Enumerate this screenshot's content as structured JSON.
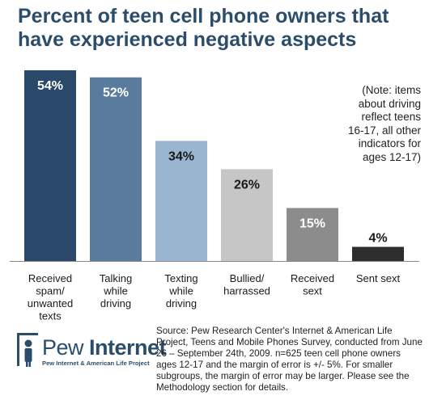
{
  "chart_data": {
    "type": "bar",
    "title": "Percent of teen cell phone owners that have experienced negative aspects",
    "categories": [
      "Received spam/ unwanted texts",
      "Talking while driving",
      "Texting while driving",
      "Bullied/ harrassed",
      "Received sext",
      "Sent sext"
    ],
    "category_lines": [
      [
        "Received",
        "spam/",
        "unwanted",
        "texts"
      ],
      [
        "Talking",
        "while",
        "driving"
      ],
      [
        "Texting",
        "while",
        "driving"
      ],
      [
        "Bullied/",
        "harrassed"
      ],
      [
        "Received",
        "sext"
      ],
      [
        "Sent sext"
      ]
    ],
    "values": [
      54,
      52,
      34,
      26,
      15,
      4
    ],
    "value_labels": [
      "54%",
      "52%",
      "34%",
      "26%",
      "15%",
      "4%"
    ],
    "bar_colors": [
      "#2a4869",
      "#5a7c9c",
      "#99b5d0",
      "#c6c6c6",
      "#8c8c8c",
      "#2e2e2e"
    ],
    "label_colors": [
      "#ffffff",
      "#ffffff",
      "#1a1a1a",
      "#1a1a1a",
      "#ffffff",
      "#1a1a1a"
    ],
    "label_placement": [
      "inside",
      "inside",
      "inside",
      "inside",
      "inside",
      "above"
    ],
    "ylim": [
      0,
      54
    ],
    "xlabel": "",
    "ylabel": "",
    "grid": false,
    "note": "(Note: items about driving reflect teens 16-17, all other indicators for ages 12-17)"
  },
  "title_lines": [
    "Percent of teen cell phone owners that",
    "have experienced negative aspects"
  ],
  "note_lines": [
    "(Note: items",
    "about driving",
    "reflect teens",
    "16-17, all other",
    "indicators for",
    "ages 12-17)"
  ],
  "source_text": "Source: Pew Research Center's Internet & American Life Project, Teens and Mobile Phones Survey, conducted from June 26 – September 24th, 2009. n=625 teen cell phone owners ages 12-17 and the margin of error is +/- 5%. For smaller subgroups, the margin of error may be larger. Please see the Methodology section for details.",
  "logo": {
    "name_part1": "Pew",
    "name_part2": "Internet",
    "tagline": "Pew Internet & American Life Project"
  },
  "colors": {
    "title": "#2b4d6b",
    "brand": "#2b4d6b"
  }
}
